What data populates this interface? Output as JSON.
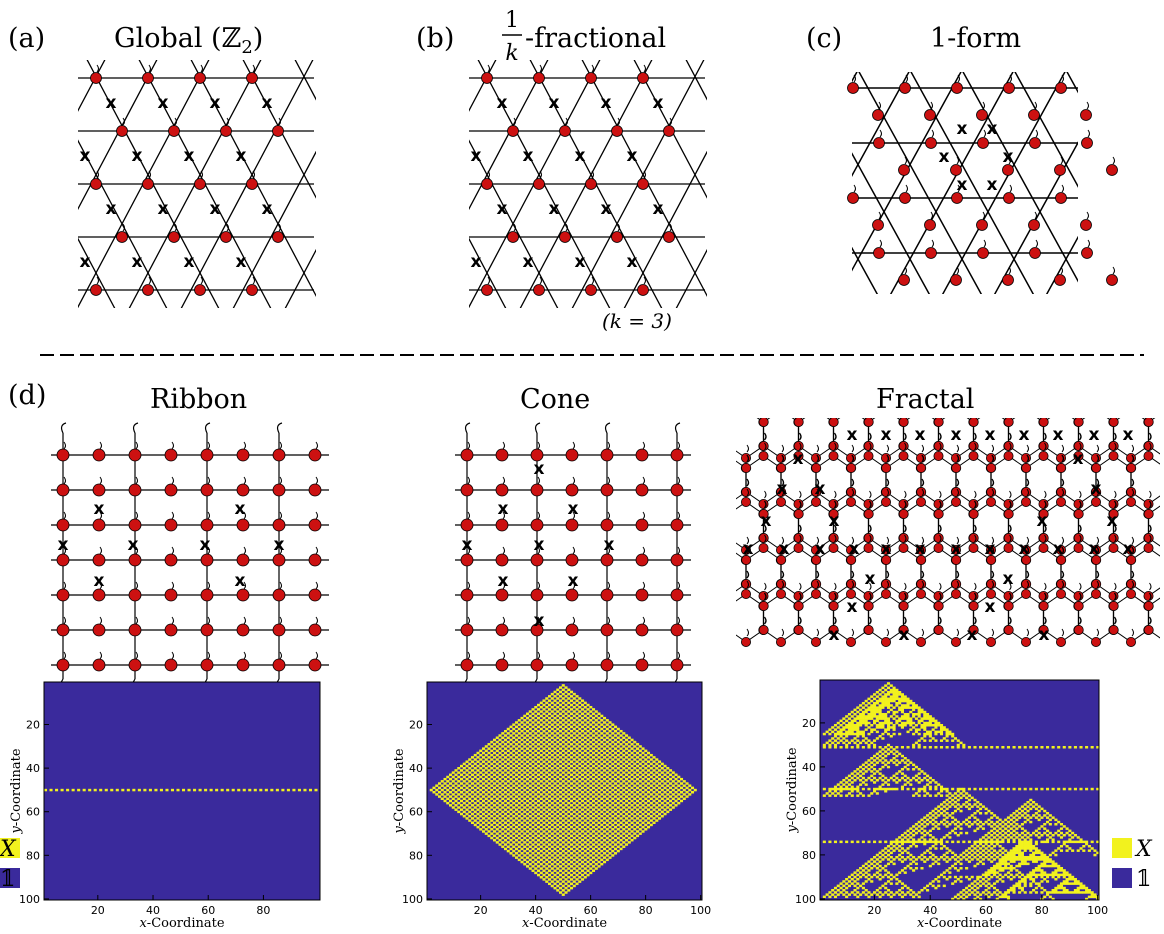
{
  "panels": {
    "a": {
      "label": "(a)",
      "title": "Global (ℤ",
      "title_sub": "2",
      "title_close": ")"
    },
    "b": {
      "label": "(b)",
      "title_num": "1",
      "title_den": "k",
      "title_rest": "-fractional",
      "note": "(k = 3)"
    },
    "c": {
      "label": "(c)",
      "title": "1-form"
    },
    "d": {
      "label": "(d)",
      "titles": [
        "Ribbon",
        "Cone",
        "Fractal"
      ]
    }
  },
  "marker": "x",
  "colors": {
    "site": "#cc1111",
    "mark_a": "#111111",
    "mark_b": [
      "#ee1111",
      "#118811",
      "#1111ee"
    ],
    "heat_bg": "#3a2a9c",
    "heat_on": "#f2f21e"
  },
  "chart_data": [
    {
      "type": "heatmap",
      "name": "ribbon",
      "xlabel": "x-Coordinate",
      "ylabel": "y-Coordinate",
      "xticks": [
        20,
        40,
        60,
        80
      ],
      "yticks": [
        20,
        40,
        60,
        80,
        100
      ],
      "xlim": [
        1,
        100
      ],
      "ylim": [
        1,
        100
      ],
      "legend": {
        "on": "X",
        "off": "𝟙"
      },
      "description_values": {
        "rows_active": [
          50
        ],
        "pattern": "alternating on row 50"
      }
    },
    {
      "type": "heatmap",
      "name": "cone",
      "xlabel": "x-Coordinate",
      "ylabel": "y-Coordinate",
      "xticks": [
        20,
        40,
        60,
        80,
        100
      ],
      "yticks": [
        20,
        40,
        60,
        80,
        100
      ],
      "xlim": [
        1,
        100
      ],
      "ylim": [
        1,
        100
      ],
      "legend": {
        "on": "X",
        "off": "𝟙"
      },
      "description_values": {
        "center": [
          50,
          50
        ],
        "half_width": 50,
        "pattern": "checkerboard diamond"
      }
    },
    {
      "type": "heatmap",
      "name": "fractal",
      "xlabel": "x-Coordinate",
      "ylabel": "y-Coordinate",
      "xticks": [
        20,
        40,
        60,
        80,
        100
      ],
      "yticks": [
        20,
        40,
        60,
        80,
        100
      ],
      "xlim": [
        1,
        100
      ],
      "ylim": [
        1,
        100
      ],
      "legend": {
        "on": "X",
        "off": "𝟙"
      },
      "description_values": {
        "pattern": "Sierpinski triangles"
      }
    }
  ]
}
